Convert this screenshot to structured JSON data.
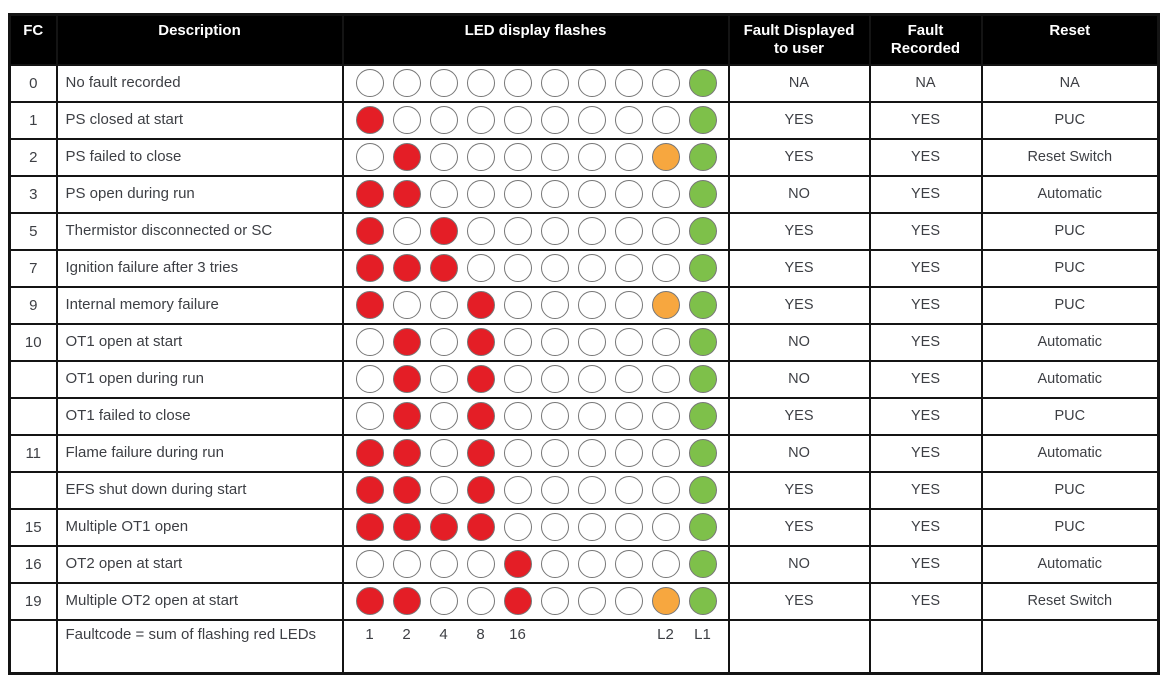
{
  "table": {
    "columns": [
      {
        "key": "fc",
        "label": "FC"
      },
      {
        "key": "description",
        "label": "Description"
      },
      {
        "key": "led",
        "label": "LED display flashes"
      },
      {
        "key": "fault_displayed",
        "label": "Fault Displayed\nto user"
      },
      {
        "key": "fault_recorded",
        "label": "Fault\nRecorded"
      },
      {
        "key": "reset",
        "label": "Reset"
      }
    ],
    "led_colors": {
      "off": "#ffffff",
      "red": "#e41e26",
      "orange": "#f7a73f",
      "green": "#7ec04a"
    },
    "rows": [
      {
        "fc": "0",
        "description": "No fault recorded",
        "leds": [
          "off",
          "off",
          "off",
          "off",
          "off",
          "off",
          "off",
          "off",
          "off",
          "green"
        ],
        "fault_displayed": "NA",
        "fault_recorded": "NA",
        "reset": "NA"
      },
      {
        "fc": "1",
        "description": "PS closed at start",
        "leds": [
          "red",
          "off",
          "off",
          "off",
          "off",
          "off",
          "off",
          "off",
          "off",
          "green"
        ],
        "fault_displayed": "YES",
        "fault_recorded": "YES",
        "reset": "PUC"
      },
      {
        "fc": "2",
        "description": "PS failed to close",
        "leds": [
          "off",
          "red",
          "off",
          "off",
          "off",
          "off",
          "off",
          "off",
          "orange",
          "green"
        ],
        "fault_displayed": "YES",
        "fault_recorded": "YES",
        "reset": "Reset Switch"
      },
      {
        "fc": "3",
        "description": "PS open during run",
        "leds": [
          "red",
          "red",
          "off",
          "off",
          "off",
          "off",
          "off",
          "off",
          "off",
          "green"
        ],
        "fault_displayed": "NO",
        "fault_recorded": "YES",
        "reset": "Automatic"
      },
      {
        "fc": "5",
        "description": "Thermistor disconnected or SC",
        "leds": [
          "red",
          "off",
          "red",
          "off",
          "off",
          "off",
          "off",
          "off",
          "off",
          "green"
        ],
        "fault_displayed": "YES",
        "fault_recorded": "YES",
        "reset": "PUC"
      },
      {
        "fc": "7",
        "description": "Ignition failure after 3 tries",
        "leds": [
          "red",
          "red",
          "red",
          "off",
          "off",
          "off",
          "off",
          "off",
          "off",
          "green"
        ],
        "fault_displayed": "YES",
        "fault_recorded": "YES",
        "reset": "PUC"
      },
      {
        "fc": "9",
        "description": "Internal memory failure",
        "leds": [
          "red",
          "off",
          "off",
          "red",
          "off",
          "off",
          "off",
          "off",
          "orange",
          "green"
        ],
        "fault_displayed": "YES",
        "fault_recorded": "YES",
        "reset": "PUC"
      },
      {
        "fc": "10",
        "description": "OT1 open at start",
        "leds": [
          "off",
          "red",
          "off",
          "red",
          "off",
          "off",
          "off",
          "off",
          "off",
          "green"
        ],
        "fault_displayed": "NO",
        "fault_recorded": "YES",
        "reset": "Automatic"
      },
      {
        "fc": "",
        "description": "OT1 open during run",
        "leds": [
          "off",
          "red",
          "off",
          "red",
          "off",
          "off",
          "off",
          "off",
          "off",
          "green"
        ],
        "fault_displayed": "NO",
        "fault_recorded": "YES",
        "reset": "Automatic"
      },
      {
        "fc": "",
        "description": "OT1 failed to close",
        "leds": [
          "off",
          "red",
          "off",
          "red",
          "off",
          "off",
          "off",
          "off",
          "off",
          "green"
        ],
        "fault_displayed": "YES",
        "fault_recorded": "YES",
        "reset": "PUC"
      },
      {
        "fc": "11",
        "description": "Flame failure during run",
        "leds": [
          "red",
          "red",
          "off",
          "red",
          "off",
          "off",
          "off",
          "off",
          "off",
          "green"
        ],
        "fault_displayed": "NO",
        "fault_recorded": "YES",
        "reset": "Automatic"
      },
      {
        "fc": "",
        "description": "EFS shut down during start",
        "leds": [
          "red",
          "red",
          "off",
          "red",
          "off",
          "off",
          "off",
          "off",
          "off",
          "green"
        ],
        "fault_displayed": "YES",
        "fault_recorded": "YES",
        "reset": "PUC"
      },
      {
        "fc": "15",
        "description": "Multiple OT1 open",
        "leds": [
          "red",
          "red",
          "red",
          "red",
          "off",
          "off",
          "off",
          "off",
          "off",
          "green"
        ],
        "fault_displayed": "YES",
        "fault_recorded": "YES",
        "reset": "PUC"
      },
      {
        "fc": "16",
        "description": "OT2 open at start",
        "leds": [
          "off",
          "off",
          "off",
          "off",
          "red",
          "off",
          "off",
          "off",
          "off",
          "green"
        ],
        "fault_displayed": "NO",
        "fault_recorded": "YES",
        "reset": "Automatic"
      },
      {
        "fc": "19",
        "description": "Multiple OT2 open at start",
        "leds": [
          "red",
          "red",
          "off",
          "off",
          "red",
          "off",
          "off",
          "off",
          "orange",
          "green"
        ],
        "fault_displayed": "YES",
        "fault_recorded": "YES",
        "reset": "Reset Switch"
      }
    ],
    "footer": {
      "fc": "",
      "description": "Faultcode = sum of flashing red LEDs",
      "led_labels": [
        "1",
        "2",
        "4",
        "8",
        "16",
        "",
        "",
        "",
        "L2",
        "L1"
      ],
      "fault_displayed": "",
      "fault_recorded": "",
      "reset": ""
    }
  }
}
